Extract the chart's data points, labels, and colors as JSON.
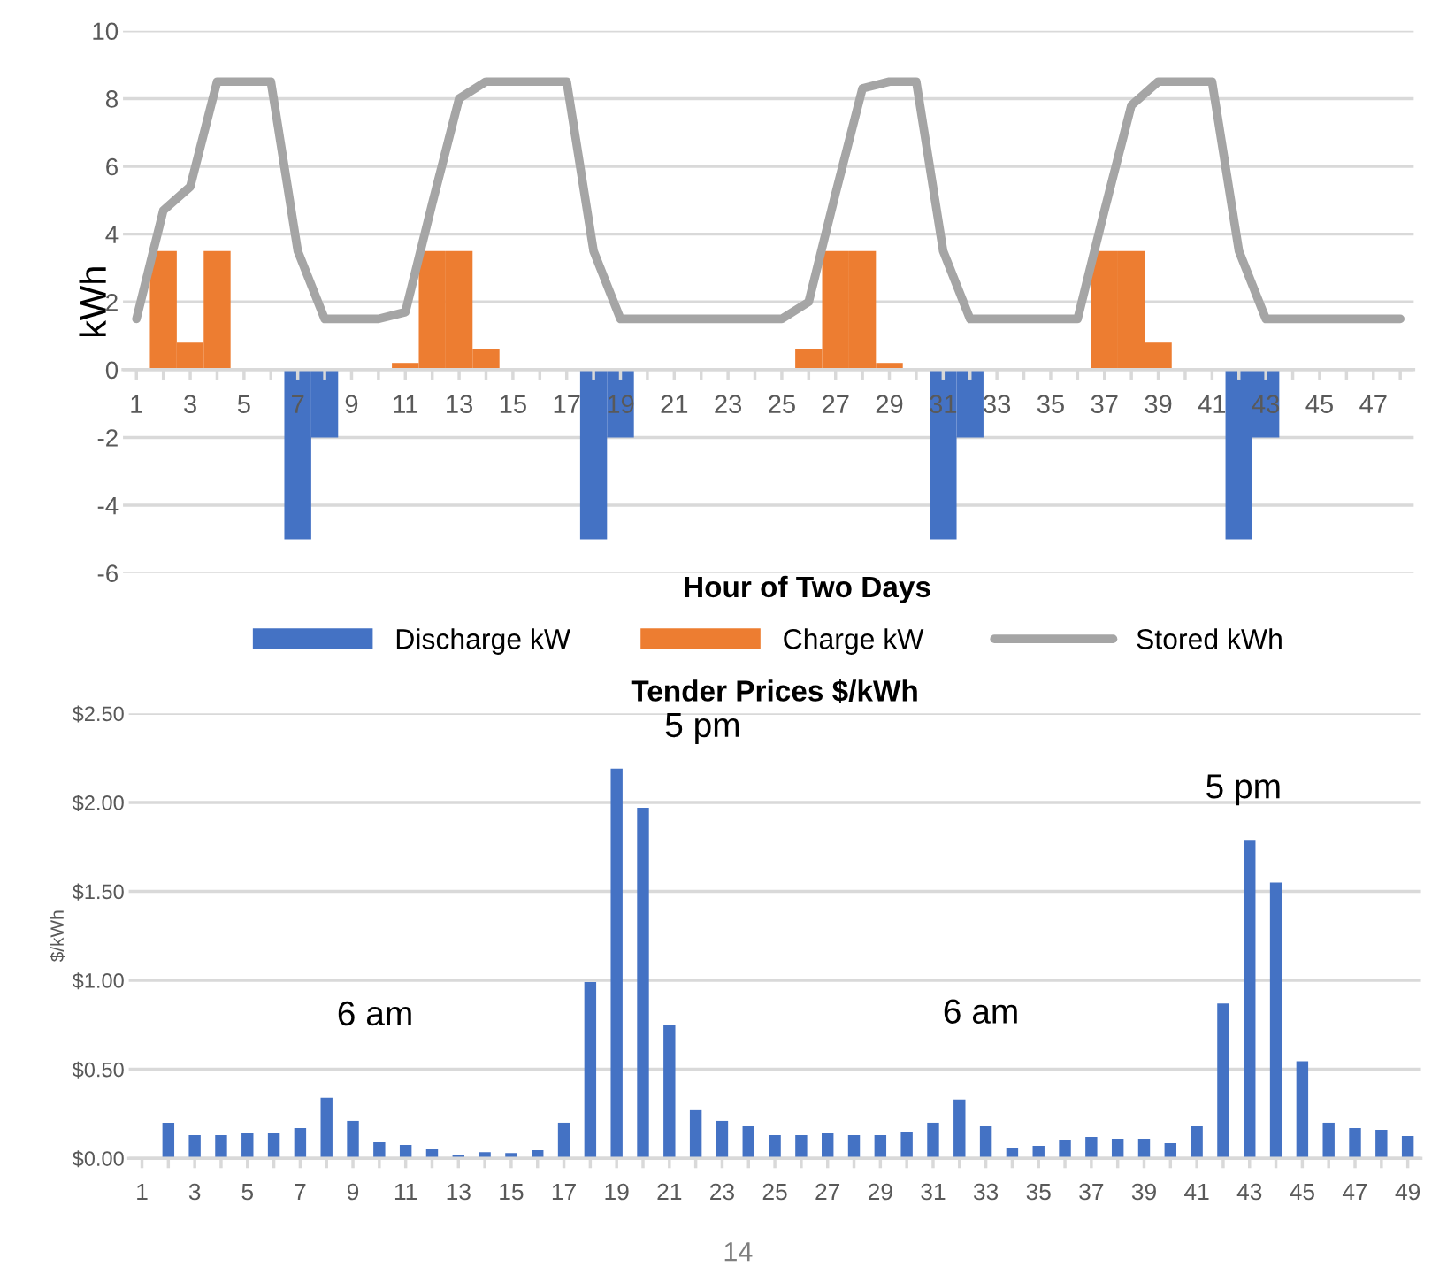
{
  "chart_data": [
    {
      "type": "bar",
      "xlabel": "Hour of Two Days",
      "ylabel": "kWh",
      "categories": [
        "1",
        null,
        "3",
        null,
        "5",
        null,
        "7",
        null,
        "9",
        null,
        "11",
        null,
        "13",
        null,
        "15",
        null,
        "17",
        null,
        "19",
        null,
        "21",
        null,
        "23",
        null,
        "25",
        null,
        "27",
        null,
        "29",
        null,
        "31",
        null,
        "33",
        null,
        "35",
        null,
        "37",
        null,
        "39",
        null,
        "41",
        null,
        "43",
        null,
        "45",
        null,
        "47",
        null
      ],
      "series": [
        {
          "name": "Discharge kW",
          "color": "#4472c4",
          "values": [
            null,
            null,
            null,
            null,
            null,
            null,
            -5,
            -2,
            null,
            null,
            null,
            null,
            null,
            null,
            null,
            null,
            null,
            -5,
            -2,
            null,
            null,
            null,
            null,
            null,
            null,
            null,
            null,
            null,
            null,
            null,
            -5,
            -2,
            null,
            null,
            null,
            null,
            null,
            null,
            null,
            null,
            null,
            -5,
            -2,
            null,
            null,
            null,
            null,
            null
          ]
        },
        {
          "name": "Charge kW",
          "color": "#ed7d31",
          "values": [
            null,
            3.5,
            0.8,
            3.5,
            null,
            null,
            null,
            null,
            null,
            null,
            0.2,
            3.5,
            3.5,
            0.6,
            null,
            null,
            null,
            null,
            null,
            null,
            null,
            null,
            null,
            null,
            null,
            0.6,
            3.5,
            3.5,
            0.2,
            null,
            null,
            null,
            null,
            null,
            null,
            null,
            3.5,
            3.5,
            0.8,
            null,
            null,
            null,
            null,
            null,
            null,
            null,
            null,
            null
          ]
        },
        {
          "name": "Stored kWh",
          "type": "line",
          "color": "#a5a5a5",
          "values": [
            1.5,
            4.7,
            5.4,
            8.5,
            8.5,
            8.5,
            3.5,
            1.5,
            1.5,
            1.5,
            1.7,
            4.9,
            8.0,
            8.5,
            8.5,
            8.5,
            8.5,
            3.5,
            1.5,
            1.5,
            1.5,
            1.5,
            1.5,
            1.5,
            1.5,
            2.0,
            5.2,
            8.3,
            8.5,
            8.5,
            3.5,
            1.5,
            1.5,
            1.5,
            1.5,
            1.5,
            4.7,
            7.8,
            8.5,
            8.5,
            8.5,
            3.5,
            1.5,
            1.5,
            1.5,
            1.5,
            1.5,
            1.5
          ]
        }
      ],
      "ylim": [
        -6,
        10
      ],
      "yticks": [
        -6,
        -4,
        -2,
        0,
        2,
        4,
        6,
        8,
        10
      ],
      "grid": "y",
      "legend": "bottom"
    },
    {
      "type": "bar",
      "title": "Tender Prices $/kWh",
      "ylabel": "$/kWh",
      "categories": [
        "1",
        null,
        "3",
        null,
        "5",
        null,
        "7",
        null,
        "9",
        null,
        "11",
        null,
        "13",
        null,
        "15",
        null,
        "17",
        null,
        "19",
        null,
        "21",
        null,
        "23",
        null,
        "25",
        null,
        "27",
        null,
        "29",
        null,
        "31",
        null,
        "33",
        null,
        "35",
        null,
        "37",
        null,
        "39",
        null,
        "41",
        null,
        "43",
        null,
        "45",
        null,
        "47",
        null,
        "49"
      ],
      "values": [
        null,
        0.2,
        0.13,
        0.13,
        0.14,
        0.14,
        0.17,
        0.34,
        0.21,
        0.09,
        0.075,
        0.05,
        0.02,
        0.035,
        0.03,
        0.045,
        0.2,
        0.99,
        2.19,
        1.97,
        0.75,
        0.27,
        0.21,
        0.18,
        0.13,
        0.13,
        0.14,
        0.13,
        0.13,
        0.15,
        0.2,
        0.33,
        0.18,
        0.06,
        0.07,
        0.1,
        0.12,
        0.11,
        0.11,
        0.085,
        0.18,
        0.87,
        1.79,
        1.55,
        0.545,
        0.2,
        0.17,
        0.16,
        0.125
      ],
      "color": "#4472c4",
      "ylim": [
        0,
        2.5
      ],
      "yticks": [
        {
          "value": 0,
          "label": "$0.00"
        },
        {
          "value": 0.5,
          "label": "$0.50"
        },
        {
          "value": 1,
          "label": "$1.00"
        },
        {
          "value": 1.5,
          "label": "$1.50"
        },
        {
          "value": 2,
          "label": "$2.00"
        },
        {
          "value": 2.5,
          "label": "$2.50"
        }
      ],
      "grid": "y",
      "annotations": [
        {
          "text": "5 pm",
          "x": "19",
          "y": 2.19
        },
        {
          "text": "5 pm",
          "x": "43",
          "y": 1.79
        },
        {
          "text": "6 am",
          "x": "9",
          "y": 0.21
        },
        {
          "text": "6 am",
          "x": "33",
          "y": 0.18
        },
        "14"
      ]
    }
  ]
}
